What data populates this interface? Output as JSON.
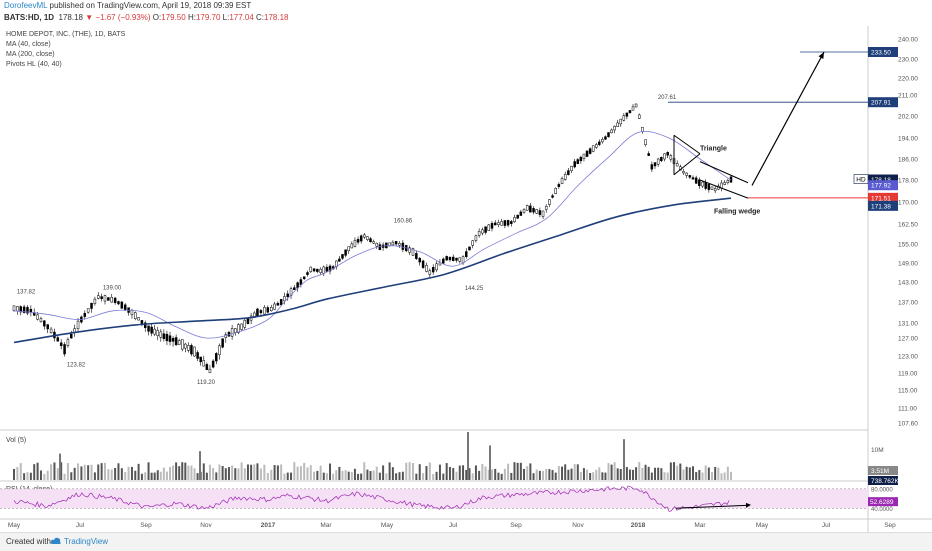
{
  "header": {
    "author": "DorofeevML",
    "published": "published on TradingView.com, April 19, 2018 09:39 EST",
    "symbol": "BATS:HD, 1D",
    "last": "178.18",
    "change_arrow": "▼",
    "change": "−1.67 (−0.93%)",
    "o_label": "O:",
    "o_val": "179.50",
    "h_label": "H:",
    "h_val": "179.70",
    "l_label": "L:",
    "l_val": "177.04",
    "c_label": "C:",
    "c_val": "178.18"
  },
  "legend": [
    "HOME DEPOT, INC. (THE), 1D, BATS",
    "MA (40, close)",
    "MA (200, close)",
    "Pivots HL (40, 40)"
  ],
  "footer": {
    "created_with": "Created with",
    "brand": "TradingView"
  },
  "colors": {
    "bullish": "#000000",
    "ma40": "#7b7bd6",
    "ma200": "#1f3f7a",
    "rsi": "#9c27b0",
    "rsi_band": "#f6e0f6",
    "support": "#e53935",
    "price_tag": "#0e1f4a",
    "annotation": "#000000"
  },
  "chart_data": {
    "type": "candlestick",
    "symbol": "HD",
    "timeframe": "1D",
    "price_axis": {
      "ticks": [
        107.6,
        111.0,
        115.0,
        119.0,
        123.0,
        127.0,
        131.0,
        137.0,
        143.0,
        149.0,
        155.0,
        162.5,
        170.0,
        178.0,
        186.0,
        194.0,
        202.0,
        211.0,
        220.0,
        230.0,
        240.0
      ],
      "tick_labels": [
        "107.60",
        "111.00",
        "115.00",
        "119.00",
        "123.00",
        "127.00",
        "131.00",
        "137.00",
        "143.00",
        "149.00",
        "155.00",
        "162.50",
        "170.00",
        "178.00",
        "186.00",
        "194.00",
        "202.00",
        "211.00",
        "220.00",
        "230.00",
        "240.00"
      ]
    },
    "time_axis": [
      "May",
      "Jul",
      "Sep",
      "Nov",
      "2017",
      "Mar",
      "May",
      "Jul",
      "Sep",
      "Nov",
      "2018",
      "Mar",
      "May",
      "Jul",
      "Sep"
    ],
    "price_path": [
      [
        "May",
        135.2
      ],
      [
        "Jun",
        134.5
      ],
      [
        "Jun",
        130.0
      ],
      [
        "Jun",
        124.5
      ],
      [
        "Jul",
        132.0
      ],
      [
        "Jul",
        138.5
      ],
      [
        "Aug",
        137.5
      ],
      [
        "Aug",
        134.0
      ],
      [
        "Sep",
        129.5
      ],
      [
        "Sep",
        127.5
      ],
      [
        "Oct",
        126.0
      ],
      [
        "Oct",
        124.0
      ],
      [
        "Nov",
        119.5
      ],
      [
        "Nov",
        127.5
      ],
      [
        "Dec",
        130.0
      ],
      [
        "Dec",
        134.0
      ],
      [
        "2017",
        135.0
      ],
      [
        "Jan",
        137.0
      ],
      [
        "Feb",
        140.0
      ],
      [
        "Feb",
        143.0
      ],
      [
        "Mar",
        147.0
      ],
      [
        "Mar",
        146.5
      ],
      [
        "Apr",
        147.5
      ],
      [
        "May",
        153.5
      ],
      [
        "May",
        158.0
      ],
      [
        "Jun",
        154.0
      ],
      [
        "Jun",
        155.5
      ],
      [
        "Jul",
        152.5
      ],
      [
        "Jul",
        146.0
      ],
      [
        "Aug",
        150.5
      ],
      [
        "Aug",
        150.0
      ],
      [
        "Sep",
        159.0
      ],
      [
        "Sep",
        162.5
      ],
      [
        "Oct",
        163.0
      ],
      [
        "Oct",
        168.0
      ],
      [
        "Nov",
        166.0
      ],
      [
        "Nov",
        176.0
      ],
      [
        "Dec",
        184.0
      ],
      [
        "Dec",
        189.0
      ],
      [
        "2018",
        194.0
      ],
      [
        "Jan",
        200.0
      ],
      [
        "Jan",
        206.5
      ],
      [
        "Feb",
        183.0
      ],
      [
        "Feb",
        188.0
      ],
      [
        "Mar",
        181.0
      ],
      [
        "Mar",
        177.0
      ],
      [
        "Apr",
        174.5
      ],
      [
        "Apr",
        178.18
      ]
    ],
    "ma40_path": [
      [
        "May",
        134.5
      ],
      [
        "Jun",
        133.5
      ],
      [
        "Jul",
        132.0
      ],
      [
        "Aug",
        134.5
      ],
      [
        "Sep",
        134.0
      ],
      [
        "Oct",
        130.0
      ],
      [
        "Nov",
        127.0
      ],
      [
        "Dec",
        128.5
      ],
      [
        "2017",
        132.0
      ],
      [
        "Feb",
        138.0
      ],
      [
        "Mar",
        143.5
      ],
      [
        "Apr",
        146.0
      ],
      [
        "May",
        151.5
      ],
      [
        "Jun",
        154.5
      ],
      [
        "Jul",
        152.5
      ],
      [
        "Aug",
        148.0
      ],
      [
        "Sep",
        153.5
      ],
      [
        "Oct",
        159.0
      ],
      [
        "Nov",
        164.5
      ],
      [
        "Dec",
        176.0
      ],
      [
        "2018",
        186.5
      ],
      [
        "Jan",
        196.0
      ],
      [
        "Feb",
        194.0
      ],
      [
        "Mar",
        186.0
      ],
      [
        "Apr",
        177.92
      ]
    ],
    "ma200_path": [
      [
        "May",
        126.0
      ],
      [
        "Jul",
        128.5
      ],
      [
        "Sep",
        130.5
      ],
      [
        "Nov",
        131.5
      ],
      [
        "2017",
        132.5
      ],
      [
        "Mar",
        135.0
      ],
      [
        "May",
        138.0
      ],
      [
        "Jul",
        141.5
      ],
      [
        "Sep",
        145.5
      ],
      [
        "Nov",
        152.0
      ],
      [
        "2018",
        158.5
      ],
      [
        "Feb",
        165.0
      ],
      [
        "Mar",
        169.0
      ],
      [
        "Apr",
        171.38
      ]
    ],
    "pivots": [
      {
        "label": "137.82",
        "month": "May",
        "type": "high"
      },
      {
        "label": "123.82",
        "month": "Jul",
        "type": "low"
      },
      {
        "label": "139.00",
        "month": "Jul",
        "type": "high"
      },
      {
        "label": "119.20",
        "month": "Nov",
        "type": "low"
      },
      {
        "label": "160.86",
        "month": "May",
        "type": "high"
      },
      {
        "label": "144.25",
        "month": "Aug",
        "type": "low"
      },
      {
        "label": "207.61",
        "month": "Jan",
        "type": "high"
      }
    ],
    "levels": {
      "target": "233.50",
      "prior_high": "207.91",
      "support": "171.51"
    },
    "price_tags": [
      {
        "value": "178.18",
        "kind": "last"
      },
      {
        "value": "177.92",
        "kind": "ma40"
      },
      {
        "value": "171.51",
        "kind": "support"
      },
      {
        "value": "171.38",
        "kind": "ma200"
      }
    ],
    "tag_symbol": "HD",
    "annotations": {
      "triangle": "Triangle",
      "wedge": "Falling wedge"
    },
    "volume": {
      "legend": "Vol (5)",
      "axis_label": "10M",
      "tags": [
        "3.51M",
        "738.762K"
      ],
      "spikes": [
        [
          "Jun",
          0.55
        ],
        [
          "Nov",
          0.6
        ],
        [
          "Aug",
          1.0
        ],
        [
          "Sep",
          0.72
        ],
        [
          "Feb",
          0.85
        ]
      ]
    },
    "rsi": {
      "legend": "RSI (14, close)",
      "band": [
        40,
        80
      ],
      "axis_labels": [
        "80.0000",
        "40.0000"
      ],
      "last": "52.6289",
      "path": [
        [
          "May",
          55
        ],
        [
          "Jun",
          45
        ],
        [
          "Jul",
          70
        ],
        [
          "Aug",
          60
        ],
        [
          "Sep",
          42
        ],
        [
          "Oct",
          50
        ],
        [
          "Nov",
          40
        ],
        [
          "Dec",
          62
        ],
        [
          "2017",
          58
        ],
        [
          "Feb",
          66
        ],
        [
          "Mar",
          62
        ],
        [
          "Apr",
          55
        ],
        [
          "May",
          70
        ],
        [
          "Jun",
          58
        ],
        [
          "Jul",
          45
        ],
        [
          "Aug",
          40
        ],
        [
          "Sep",
          63
        ],
        [
          "Oct",
          68
        ],
        [
          "Nov",
          72
        ],
        [
          "Dec",
          76
        ],
        [
          "2018",
          80
        ],
        [
          "Jan",
          82
        ],
        [
          "Feb",
          38
        ],
        [
          "Mar",
          44
        ],
        [
          "Apr",
          52.6289
        ]
      ]
    }
  }
}
